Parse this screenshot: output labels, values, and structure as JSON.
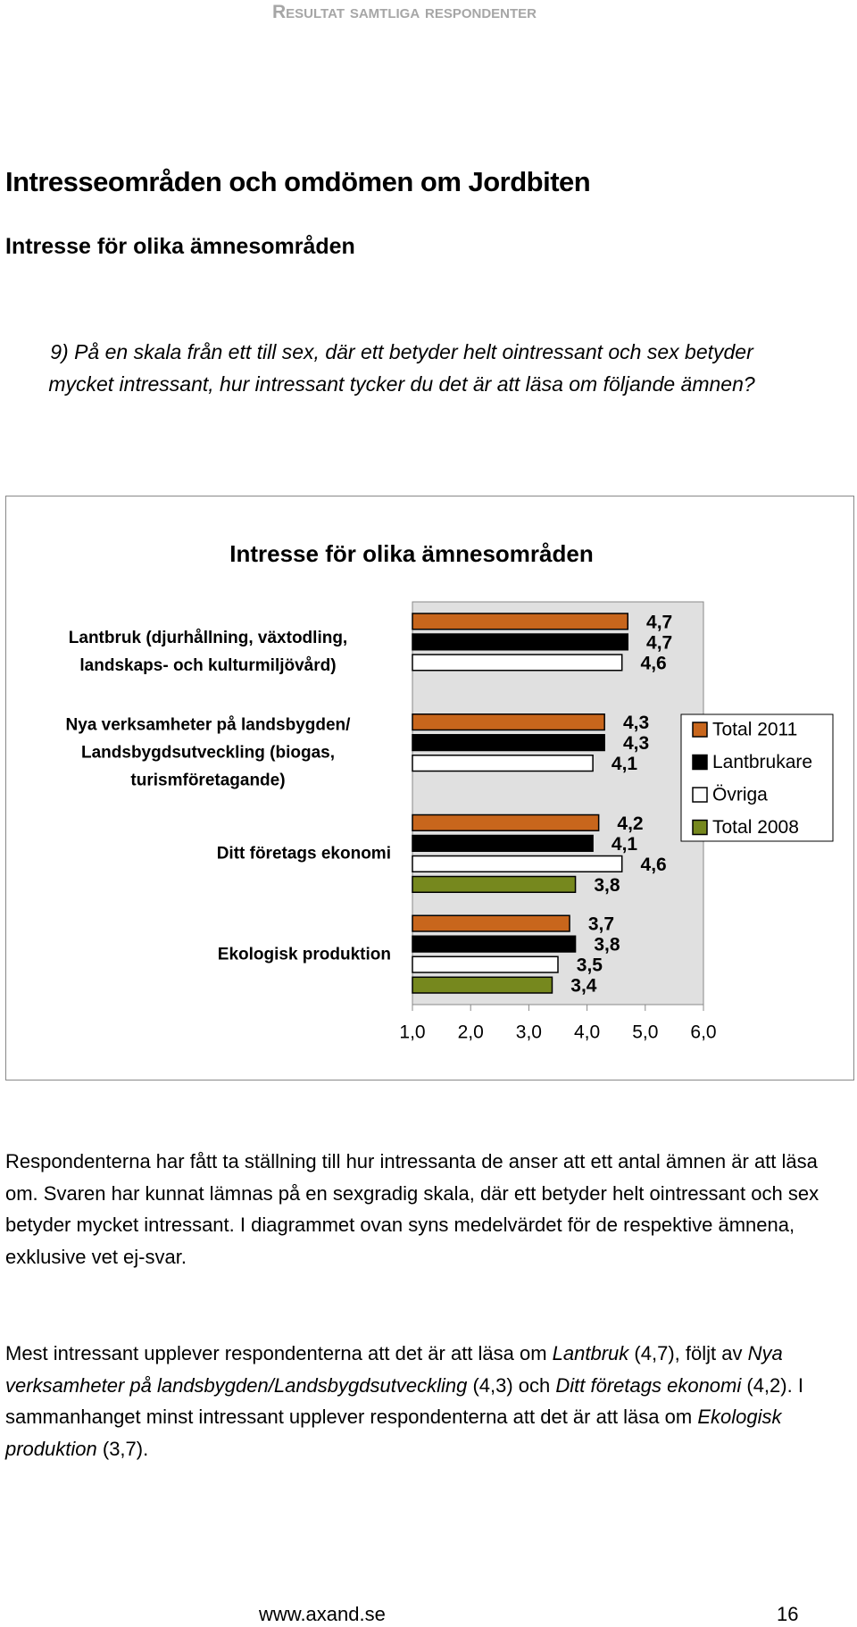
{
  "header": {
    "running_title": "Resultat samtliga respondenter"
  },
  "heading": "Intresseområden och omdömen om Jordbiten",
  "subheading": "Intresse för olika ämnesområden",
  "question": "9) På en skala från ett till sex, där ett betyder helt ointressant och sex betyder mycket intressant, hur intressant tycker du det är att läsa om följande ämnen?",
  "chart_data": {
    "type": "hbar",
    "title": "Intresse för olika ämnesområden",
    "categories": [
      "Lantbruk (djurhållning, växtodling, landskaps- och kulturmiljövård)",
      "Nya verksamheter på landsbygden/ Landsbygdsutveckling (biogas, turismföretagande)",
      "Ditt företags ekonomi",
      "Ekologisk produktion"
    ],
    "series": [
      {
        "name": "Total 2011",
        "color": "#c8661c",
        "values": [
          4.7,
          4.3,
          4.2,
          3.7
        ],
        "value_labels": [
          "4,7",
          "4,3",
          "4,2",
          "3,7"
        ]
      },
      {
        "name": "Lantbrukare",
        "color": "#000000",
        "values": [
          4.7,
          4.3,
          4.1,
          3.8
        ],
        "value_labels": [
          "4,7",
          "4,3",
          "4,1",
          "3,8"
        ]
      },
      {
        "name": "Övriga",
        "color": "#ffffff",
        "values": [
          4.6,
          4.1,
          4.6,
          3.5
        ],
        "value_labels": [
          "4,6",
          "4,1",
          "4,6",
          "3,5"
        ]
      },
      {
        "name": "Total 2008",
        "color": "#76881e",
        "values": [
          null,
          null,
          3.8,
          3.4
        ],
        "value_labels": [
          null,
          null,
          "3,8",
          "3,4"
        ]
      }
    ],
    "xlim": [
      1,
      6
    ],
    "xticks": [
      {
        "value": 1,
        "label": "1,0"
      },
      {
        "value": 2,
        "label": "2,0"
      },
      {
        "value": 3,
        "label": "3,0"
      },
      {
        "value": 4,
        "label": "4,0"
      },
      {
        "value": 5,
        "label": "5,0"
      },
      {
        "value": 6,
        "label": "6,0"
      }
    ],
    "legend": "right"
  },
  "paragraphs": [
    [
      {
        "text": "Respondenterna har fått ta ställning till hur intressanta de anser att ett antal ämnen är att läsa om. Svaren har kunnat lämnas på en sexgradig skala, där ett betyder helt ointressant och sex betyder mycket intressant. I diagrammet ovan syns medelvärdet för de respektive ämnena, exklusive vet ej-svar."
      }
    ],
    [
      {
        "text": "Mest intressant upplever respondenterna att det är att läsa om "
      },
      {
        "text": "Lantbruk",
        "italic": true
      },
      {
        "text": " (4,7), följt av "
      },
      {
        "text": "Nya verksamheter på landsbygden/Landsbygdsutveckling",
        "italic": true
      },
      {
        "text": " (4,3) och "
      },
      {
        "text": "Ditt företags ekonomi",
        "italic": true
      },
      {
        "text": " (4,2). I sammanhanget minst intressant upplever respondenterna att det är att läsa om "
      },
      {
        "text": "Ekologisk produktion",
        "italic": true
      },
      {
        "text": " (3,7)."
      }
    ]
  ],
  "footer": {
    "url": "www.axand.se",
    "page": "16"
  }
}
